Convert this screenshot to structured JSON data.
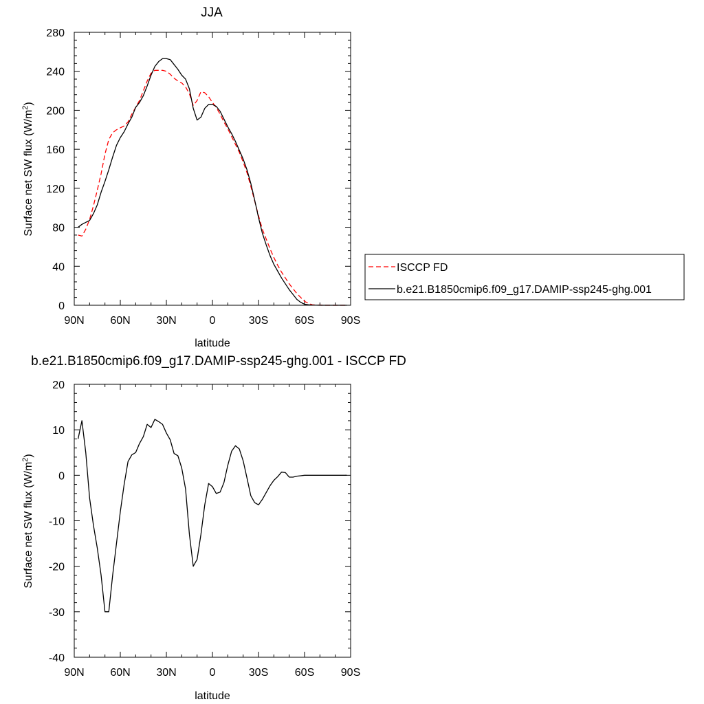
{
  "chart_data": [
    {
      "type": "line",
      "title": "JJA",
      "xlabel": "latitude",
      "ylabel": "Surface net SW flux (W/m²)",
      "ylabel_parts": {
        "main": "Surface net SW flux (W/m",
        "sup": "2",
        "close": ")"
      },
      "xlim": [
        90,
        -90
      ],
      "ylim": [
        0,
        280
      ],
      "xticks": [
        {
          "v": 90,
          "label": "90N"
        },
        {
          "v": 60,
          "label": "60N"
        },
        {
          "v": 30,
          "label": "30N"
        },
        {
          "v": 0,
          "label": "0"
        },
        {
          "v": -30,
          "label": "30S"
        },
        {
          "v": -60,
          "label": "60S"
        },
        {
          "v": -90,
          "label": "90S"
        }
      ],
      "yticks": [
        {
          "v": 0,
          "label": "0"
        },
        {
          "v": 40,
          "label": "40"
        },
        {
          "v": 80,
          "label": "80"
        },
        {
          "v": 120,
          "label": "120"
        },
        {
          "v": 160,
          "label": "160"
        },
        {
          "v": 200,
          "label": "200"
        },
        {
          "v": 240,
          "label": "240"
        },
        {
          "v": 280,
          "label": "280"
        }
      ],
      "legend": {
        "placement": "right"
      },
      "series": [
        {
          "name": "ISCCP FD",
          "color": "#ff0000",
          "dash": "dashed",
          "x": [
            87.5,
            85,
            82.5,
            80,
            77.5,
            75,
            72.5,
            70,
            67.5,
            65,
            62.5,
            60,
            57.5,
            55,
            52.5,
            50,
            47.5,
            45,
            42.5,
            40,
            37.5,
            35,
            32.5,
            30,
            27.5,
            25,
            22.5,
            20,
            17.5,
            15,
            12.5,
            10,
            7.5,
            5,
            2.5,
            0,
            -2.5,
            -5,
            -7.5,
            -10,
            -12.5,
            -15,
            -17.5,
            -20,
            -22.5,
            -25,
            -27.5,
            -30,
            -32.5,
            -35,
            -37.5,
            -40,
            -42.5,
            -45,
            -47.5,
            -50,
            -52.5,
            -55,
            -57.5,
            -60,
            -62.5,
            -65,
            -67.5,
            -70,
            -72.5,
            -75,
            -77.5,
            -80,
            -82.5,
            -85,
            -87.5
          ],
          "values": [
            72,
            71,
            78,
            88,
            102,
            118,
            135,
            155,
            170,
            177,
            180,
            182,
            184,
            188,
            196,
            203,
            210,
            220,
            230,
            238,
            241,
            241,
            241,
            240,
            237,
            233,
            230,
            228,
            224,
            217,
            205,
            210,
            219,
            218,
            214,
            208,
            203,
            196,
            188,
            181,
            173,
            165,
            157,
            147,
            136,
            122,
            107,
            92,
            78,
            68,
            58,
            49,
            41,
            34,
            28,
            22,
            17,
            12,
            8,
            4,
            2,
            0.5,
            0.2,
            0.1,
            0,
            0,
            0,
            0,
            0,
            0,
            0
          ]
        },
        {
          "name": "b.e21.B1850cmip6.f09_g17.DAMIP-ssp245-ghg.001",
          "color": "#000000",
          "dash": "solid",
          "x": [
            87.5,
            85,
            82.5,
            80,
            77.5,
            75,
            72.5,
            70,
            67.5,
            65,
            62.5,
            60,
            57.5,
            55,
            52.5,
            50,
            47.5,
            45,
            42.5,
            40,
            37.5,
            35,
            32.5,
            30,
            27.5,
            25,
            22.5,
            20,
            17.5,
            15,
            12.5,
            10,
            7.5,
            5,
            2.5,
            0,
            -2.5,
            -5,
            -7.5,
            -10,
            -12.5,
            -15,
            -17.5,
            -20,
            -22.5,
            -25,
            -27.5,
            -30,
            -32.5,
            -35,
            -37.5,
            -40,
            -42.5,
            -45,
            -47.5,
            -50,
            -52.5,
            -55,
            -57.5,
            -60,
            -62.5,
            -65,
            -67.5,
            -70,
            -72.5,
            -75,
            -77.5,
            -80,
            -82.5,
            -85,
            -87.5
          ],
          "values": [
            80,
            83,
            85,
            87,
            94,
            103,
            116,
            127,
            139,
            152,
            164,
            172,
            178,
            186,
            193,
            203,
            208,
            215,
            225,
            236,
            245,
            250,
            253,
            253,
            252,
            247,
            242,
            236,
            232,
            222,
            202,
            190,
            193,
            202,
            206,
            206,
            204,
            199,
            191,
            183,
            176,
            168,
            159,
            150,
            139,
            125,
            108,
            90,
            74,
            62,
            51,
            42,
            35,
            28,
            22,
            16,
            11,
            6,
            3,
            1,
            0.5,
            0.2,
            0.1,
            0,
            0,
            0,
            0,
            0,
            0,
            0,
            0
          ]
        }
      ]
    },
    {
      "type": "line",
      "title": "b.e21.B1850cmip6.f09_g17.DAMIP-ssp245-ghg.001 - ISCCP FD",
      "xlabel": "latitude",
      "ylabel": "Surface net SW flux (W/m²)",
      "ylabel_parts": {
        "main": "Surface net SW flux (W/m",
        "sup": "2",
        "close": ")"
      },
      "xlim": [
        90,
        -90
      ],
      "ylim": [
        -40,
        20
      ],
      "xticks": [
        {
          "v": 90,
          "label": "90N"
        },
        {
          "v": 60,
          "label": "60N"
        },
        {
          "v": 30,
          "label": "30N"
        },
        {
          "v": 0,
          "label": "0"
        },
        {
          "v": -30,
          "label": "30S"
        },
        {
          "v": -60,
          "label": "60S"
        },
        {
          "v": -90,
          "label": "90S"
        }
      ],
      "yticks": [
        {
          "v": -40,
          "label": "-40"
        },
        {
          "v": -30,
          "label": "-30"
        },
        {
          "v": -20,
          "label": "-20"
        },
        {
          "v": -10,
          "label": "-10"
        },
        {
          "v": 0,
          "label": "0"
        },
        {
          "v": 10,
          "label": "10"
        },
        {
          "v": 20,
          "label": "20"
        }
      ],
      "series": [
        {
          "color": "#000000",
          "dash": "solid",
          "x": [
            87.5,
            85,
            82.5,
            80,
            77.5,
            75,
            72.5,
            70,
            67.5,
            65,
            62.5,
            60,
            57.5,
            55,
            52.5,
            50,
            47.5,
            45,
            42.5,
            40,
            37.5,
            35,
            32.5,
            30,
            27.5,
            25,
            22.5,
            20,
            17.5,
            15,
            12.5,
            10,
            7.5,
            5,
            2.5,
            0,
            -2.5,
            -5,
            -7.5,
            -10,
            -12.5,
            -15,
            -17.5,
            -20,
            -22.5,
            -25,
            -27.5,
            -30,
            -32.5,
            -35,
            -37.5,
            -40,
            -42.5,
            -45,
            -47.5,
            -50,
            -52.5,
            -55,
            -57.5,
            -60,
            -62.5,
            -65,
            -67.5,
            -70,
            -72.5,
            -75,
            -77.5,
            -80,
            -82.5,
            -85,
            -87.5
          ],
          "values": [
            8,
            12,
            5,
            -5,
            -11,
            -16,
            -22,
            -30,
            -30,
            -22,
            -15,
            -8,
            -2,
            3,
            4.5,
            5,
            7,
            8.5,
            11.2,
            10.5,
            12.3,
            11.8,
            11.2,
            9.3,
            7.8,
            4.8,
            4.3,
            1.6,
            -3,
            -13,
            -20,
            -18.5,
            -13,
            -6.5,
            -1.8,
            -2.5,
            -4,
            -3.7,
            -1.6,
            2.2,
            5.3,
            6.5,
            5.8,
            3.2,
            -0.6,
            -4.5,
            -6,
            -6.5,
            -5.3,
            -3.8,
            -2.3,
            -1.1,
            -0.3,
            0.7,
            0.6,
            -0.4,
            -0.4,
            -0.2,
            -0.1,
            0,
            0,
            0,
            0,
            0,
            0,
            0,
            0,
            0,
            0,
            0,
            0
          ]
        }
      ]
    }
  ]
}
